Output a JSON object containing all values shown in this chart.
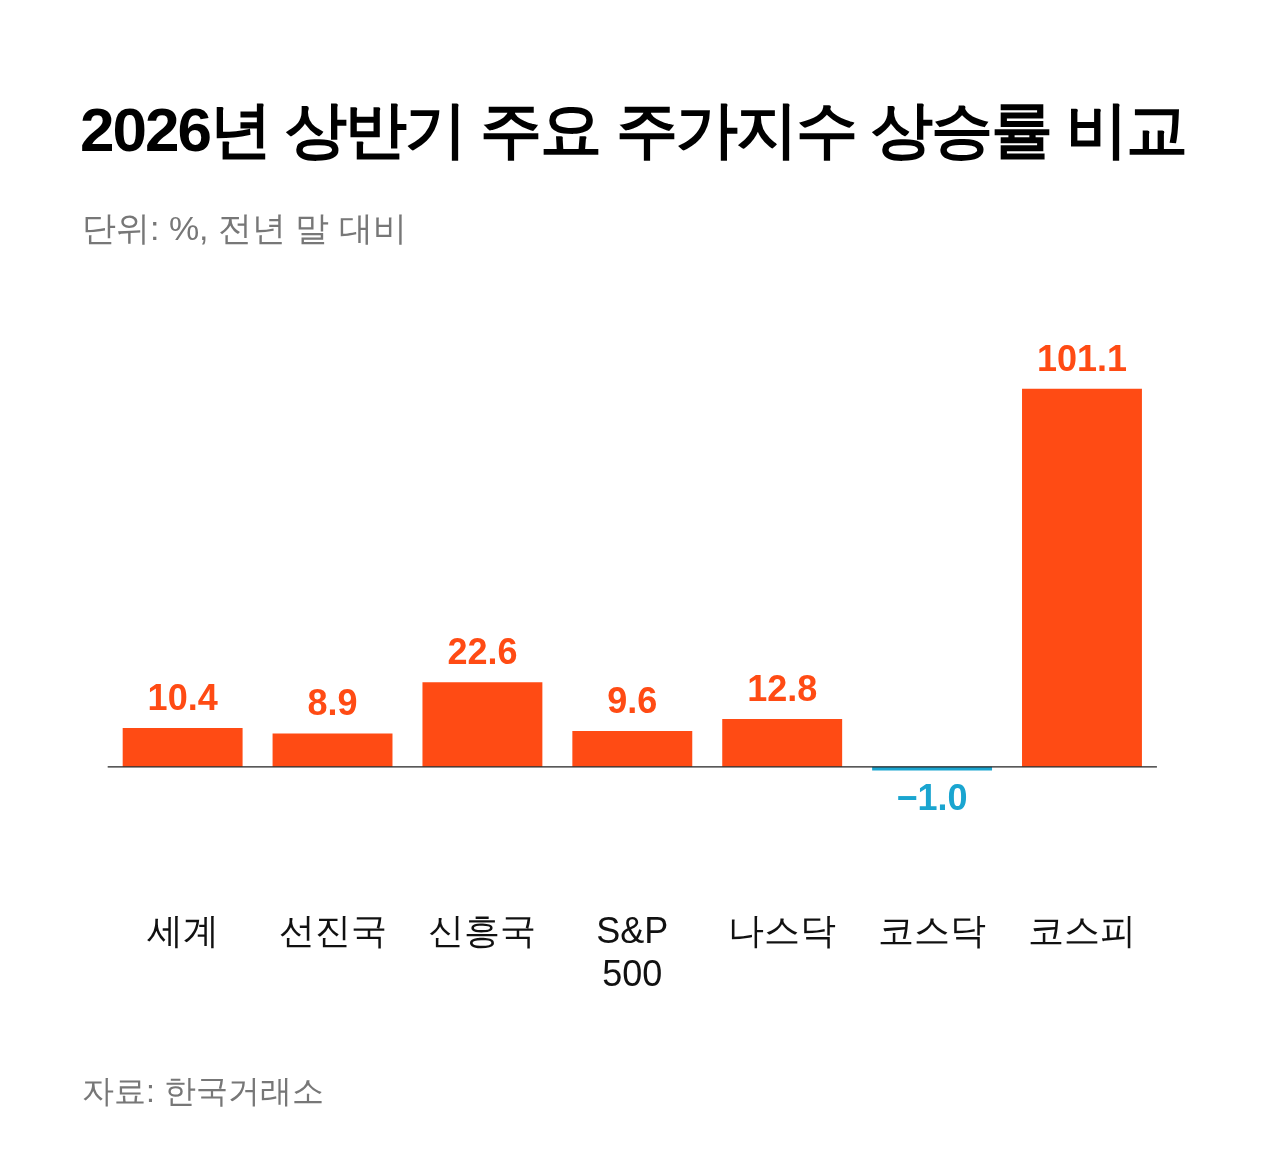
{
  "chart_data": {
    "type": "bar",
    "title": "2026년 상반기 주요 주가지수 상승률 비교",
    "subtitle": "단위: %, 전년 말 대비",
    "categories": [
      "세계",
      "선진국",
      "신흥국",
      "S&P 500",
      "나스닥",
      "코스닥",
      "코스피"
    ],
    "values": [
      10.4,
      8.9,
      22.6,
      9.6,
      12.8,
      -1.0,
      101.1
    ],
    "colors": [
      "#ff4b14",
      "#ff4b14",
      "#ff4b14",
      "#ff4b14",
      "#ff4b14",
      "#1aa5d0",
      "#ff4b14"
    ],
    "value_labels": [
      "10.4",
      "8.9",
      "22.6",
      "9.6",
      "12.8",
      "−1.0",
      "101.1"
    ],
    "grid": false,
    "legend": false,
    "annotations": [
      "자료: 한국거래소"
    ]
  }
}
